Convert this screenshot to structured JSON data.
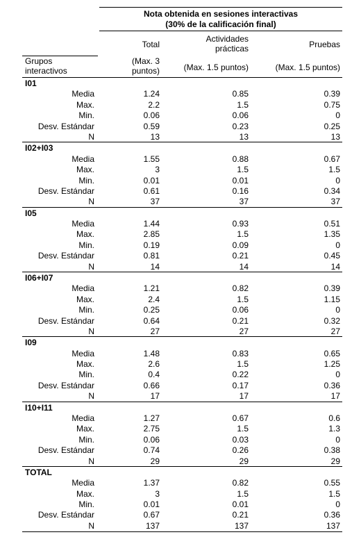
{
  "header": {
    "title_line1": "Nota obtenida en sesiones interactivas",
    "title_line2": "(30% de la calificación final)",
    "row_label_line1": "Grupos",
    "row_label_line2": "interactivos",
    "col_total_line1": "Total",
    "col_total_max_line1": "(Max. 3",
    "col_total_max_line2": "puntos)",
    "col_act_line1": "Actividades",
    "col_act_line2": "prácticas",
    "col_act_max": "(Max. 1.5 puntos)",
    "col_pruebas_line1": "Pruebas",
    "col_pruebas_max": "(Max. 1.5 puntos)"
  },
  "stat_labels": [
    "Media",
    "Max.",
    "Min.",
    "Desv. Estándar",
    "N"
  ],
  "groups": [
    {
      "name": "I01",
      "rows": [
        [
          "1.24",
          "0.85",
          "0.39"
        ],
        [
          "2.2",
          "1.5",
          "0.75"
        ],
        [
          "0.06",
          "0.06",
          "0"
        ],
        [
          "0.59",
          "0.23",
          "0.25"
        ],
        [
          "13",
          "13",
          "13"
        ]
      ]
    },
    {
      "name": "I02+I03",
      "rows": [
        [
          "1.55",
          "0.88",
          "0.67"
        ],
        [
          "3",
          "1.5",
          "1.5"
        ],
        [
          "0.01",
          "0.01",
          "0"
        ],
        [
          "0.61",
          "0.16",
          "0.34"
        ],
        [
          "37",
          "37",
          "37"
        ]
      ]
    },
    {
      "name": "I05",
      "rows": [
        [
          "1.44",
          "0.93",
          "0.51"
        ],
        [
          "2.85",
          "1.5",
          "1.35"
        ],
        [
          "0.19",
          "0.09",
          "0"
        ],
        [
          "0.81",
          "0.21",
          "0.45"
        ],
        [
          "14",
          "14",
          "14"
        ]
      ]
    },
    {
      "name": "I06+I07",
      "rows": [
        [
          "1.21",
          "0.82",
          "0.39"
        ],
        [
          "2.4",
          "1.5",
          "1.15"
        ],
        [
          "0.25",
          "0.06",
          "0"
        ],
        [
          "0.64",
          "0.21",
          "0.32"
        ],
        [
          "27",
          "27",
          "27"
        ]
      ]
    },
    {
      "name": "I09",
      "rows": [
        [
          "1.48",
          "0.83",
          "0.65"
        ],
        [
          "2.6",
          "1.5",
          "1.25"
        ],
        [
          "0.4",
          "0.22",
          "0"
        ],
        [
          "0.66",
          "0.17",
          "0.36"
        ],
        [
          "17",
          "17",
          "17"
        ]
      ]
    },
    {
      "name": "I10+I11",
      "rows": [
        [
          "1.27",
          "0.67",
          "0.6"
        ],
        [
          "2.75",
          "1.5",
          "1.3"
        ],
        [
          "0.06",
          "0.03",
          "0"
        ],
        [
          "0.74",
          "0.26",
          "0.38"
        ],
        [
          "29",
          "29",
          "29"
        ]
      ]
    },
    {
      "name": "TOTAL",
      "rows": [
        [
          "1.37",
          "0.82",
          "0.55"
        ],
        [
          "3",
          "1.5",
          "1.5"
        ],
        [
          "0.01",
          "0.01",
          "0"
        ],
        [
          "0.67",
          "0.21",
          "0.36"
        ],
        [
          "137",
          "137",
          "137"
        ]
      ]
    }
  ]
}
